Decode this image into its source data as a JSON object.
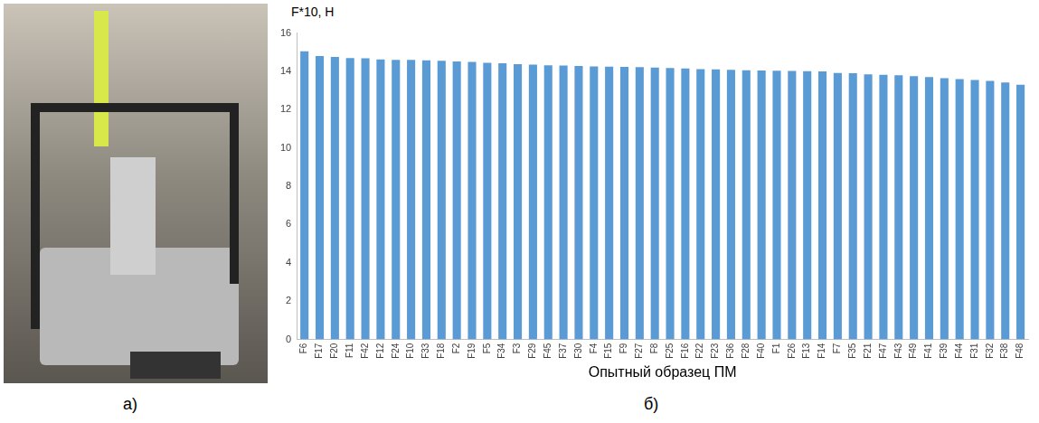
{
  "panels": {
    "a": {
      "label": "а)"
    },
    "b": {
      "label": "б)"
    }
  },
  "chart_data": {
    "type": "bar",
    "y_label": "F*10, Н",
    "x_label": "Опытный образец ПМ",
    "categories": [
      "F6",
      "F17",
      "F20",
      "F11",
      "F42",
      "F12",
      "F24",
      "F10",
      "F33",
      "F18",
      "F2",
      "F19",
      "F5",
      "F34",
      "F3",
      "F29",
      "F45",
      "F37",
      "F30",
      "F4",
      "F15",
      "F9",
      "F27",
      "F8",
      "F25",
      "F16",
      "F22",
      "F23",
      "F36",
      "F28",
      "F40",
      "F1",
      "F26",
      "F13",
      "F14",
      "F7",
      "F35",
      "F21",
      "F47",
      "F43",
      "F49",
      "F41",
      "F39",
      "F44",
      "F31",
      "F32",
      "F38",
      "F48"
    ],
    "values": [
      15.05,
      14.8,
      14.75,
      14.7,
      14.68,
      14.62,
      14.6,
      14.6,
      14.58,
      14.55,
      14.52,
      14.5,
      14.45,
      14.42,
      14.38,
      14.35,
      14.32,
      14.3,
      14.28,
      14.26,
      14.25,
      14.24,
      14.22,
      14.2,
      14.18,
      14.15,
      14.12,
      14.1,
      14.08,
      14.06,
      14.05,
      14.03,
      14.02,
      14.01,
      14.0,
      13.92,
      13.9,
      13.85,
      13.82,
      13.8,
      13.75,
      13.7,
      13.65,
      13.6,
      13.55,
      13.5,
      13.42,
      13.3
    ],
    "color": "#5b9bd5",
    "ylim": [
      0,
      16
    ],
    "yticks": [
      0,
      2,
      4,
      6,
      8,
      10,
      12,
      14,
      16
    ],
    "grid": false
  }
}
